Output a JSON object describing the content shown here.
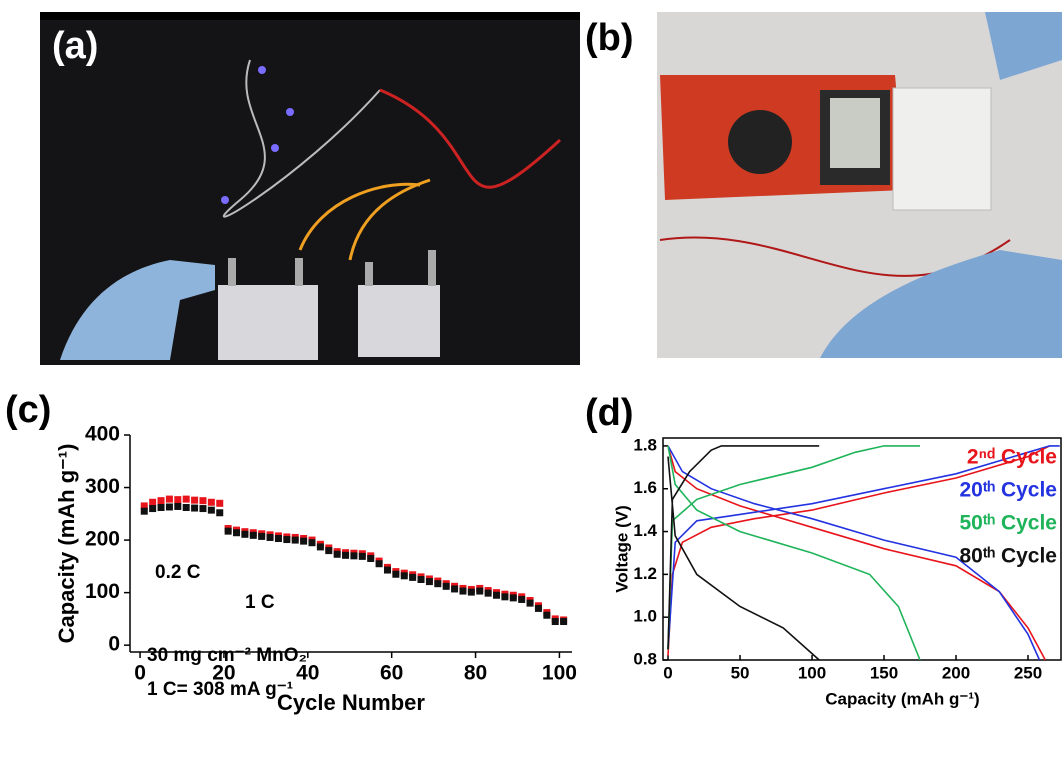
{
  "panels": {
    "a": "(a)",
    "b": "(b)"
  },
  "chart_data": [
    {
      "type": "scatter",
      "label": "(c)",
      "x_label": "Cycle Number",
      "y_label": "Capacity (mAh g⁻¹)",
      "annotations": [
        "0.2 C",
        "1 C",
        "30 mg cm⁻² MnO₂",
        "1 C= 308 mA g⁻¹"
      ],
      "xlim": [
        -2.4,
        103
      ],
      "ylim": [
        -13,
        400
      ],
      "xticks": [
        0,
        20,
        40,
        60,
        80,
        100
      ],
      "yticks": [
        0,
        100,
        200,
        300,
        400
      ],
      "x": [
        1,
        3,
        5,
        7,
        9,
        11,
        13,
        15,
        17,
        19,
        21,
        23,
        25,
        27,
        29,
        31,
        33,
        35,
        37,
        39,
        41,
        43,
        45,
        47,
        49,
        51,
        53,
        55,
        57,
        59,
        61,
        63,
        65,
        67,
        69,
        71,
        73,
        75,
        77,
        79,
        81,
        83,
        85,
        87,
        89,
        91,
        93,
        95,
        97,
        99,
        101
      ],
      "series": [
        {
          "color": "#e8141b",
          "values": [
            265,
            272,
            275,
            278,
            277,
            278,
            276,
            275,
            272,
            270,
            222,
            219,
            216,
            214,
            212,
            210,
            208,
            206,
            205,
            203,
            200,
            192,
            185,
            178,
            176,
            175,
            174,
            170,
            160,
            148,
            140,
            137,
            134,
            130,
            126,
            122,
            117,
            112,
            108,
            106,
            108,
            104,
            100,
            97,
            95,
            92,
            85,
            75,
            62,
            50,
            48
          ]
        },
        {
          "color": "#111111",
          "values": [
            255,
            260,
            262,
            263,
            264,
            262,
            261,
            260,
            257,
            252,
            217,
            214,
            211,
            209,
            207,
            205,
            203,
            201,
            200,
            198,
            195,
            187,
            180,
            173,
            171,
            170,
            169,
            165,
            155,
            143,
            135,
            132,
            129,
            125,
            121,
            117,
            112,
            107,
            103,
            101,
            103,
            99,
            95,
            92,
            90,
            87,
            80,
            70,
            57,
            45,
            45
          ]
        }
      ]
    },
    {
      "type": "line",
      "label": "(d)",
      "x_label": "Capacity (mAh g⁻¹)",
      "y_label": "Voltage (V)",
      "xlim": [
        -3.5,
        273.6
      ],
      "ylim": [
        0.8,
        1.837
      ],
      "xticks": [
        0,
        50,
        100,
        150,
        200,
        250
      ],
      "yticks": [
        0.8,
        {
          "value": 1,
          "label": "1.0"
        },
        1.2,
        1.4,
        1.6,
        1.8
      ],
      "legend": "upper right",
      "series": [
        {
          "name": "2ⁿᵈ Cycle",
          "color": "#e8141b",
          "x": [
            0,
            3,
            10,
            30,
            60,
            100,
            150,
            200,
            250,
            265,
            null,
            0,
            5,
            20,
            50,
            100,
            150,
            200,
            230,
            250,
            262
          ],
          "values": [
            0.82,
            1.2,
            1.35,
            1.42,
            1.46,
            1.5,
            1.58,
            1.65,
            1.75,
            1.8,
            null,
            1.8,
            1.68,
            1.6,
            1.52,
            1.42,
            1.32,
            1.24,
            1.12,
            0.95,
            0.8
          ]
        },
        {
          "name": "20ᵗʰ Cycle",
          "color": "#2433e0",
          "x": [
            0,
            5,
            20,
            50,
            100,
            150,
            200,
            250,
            265,
            272,
            null,
            0,
            10,
            30,
            60,
            100,
            150,
            200,
            230,
            250,
            258
          ],
          "values": [
            0.85,
            1.35,
            1.45,
            1.48,
            1.53,
            1.6,
            1.67,
            1.77,
            1.8,
            1.8,
            null,
            1.8,
            1.68,
            1.6,
            1.53,
            1.46,
            1.36,
            1.28,
            1.12,
            0.92,
            0.8
          ]
        },
        {
          "name": "50ᵗʰ Cycle",
          "color": "#1fb45a",
          "x": [
            0,
            3,
            20,
            50,
            100,
            130,
            150,
            175,
            null,
            0,
            5,
            20,
            50,
            100,
            140,
            160,
            175
          ],
          "values": [
            0.85,
            1.45,
            1.55,
            1.62,
            1.7,
            1.77,
            1.8,
            1.8,
            null,
            1.8,
            1.62,
            1.5,
            1.4,
            1.3,
            1.2,
            1.05,
            0.8
          ]
        },
        {
          "name": "80ᵗʰ Cycle",
          "color": "#111111",
          "x": [
            0,
            3,
            15,
            30,
            37,
            105,
            null,
            0,
            5,
            20,
            50,
            80,
            105
          ],
          "values": [
            0.85,
            1.55,
            1.68,
            1.78,
            1.8,
            1.8,
            null,
            1.75,
            1.38,
            1.2,
            1.05,
            0.95,
            0.8
          ]
        }
      ]
    }
  ]
}
